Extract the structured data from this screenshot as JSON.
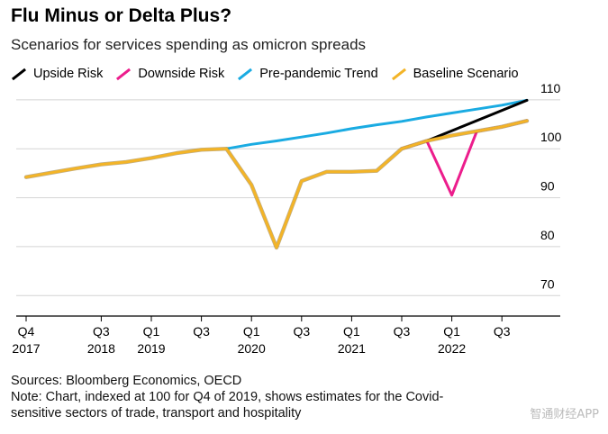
{
  "chart_data": {
    "type": "line",
    "title": "Flu Minus or Delta Plus?",
    "subtitle": "Scenarios for services spending as omicron spreads",
    "ylim": [
      66,
      112
    ],
    "yticks": [
      70,
      80,
      90,
      100,
      110
    ],
    "x_labels": [
      {
        "t": 0,
        "label": "Q4",
        "year": "2017"
      },
      {
        "t": 3,
        "label": "Q3",
        "year": "2018"
      },
      {
        "t": 5,
        "label": "Q1",
        "year": "2019"
      },
      {
        "t": 7,
        "label": "Q3",
        "year": ""
      },
      {
        "t": 9,
        "label": "Q1",
        "year": "2020"
      },
      {
        "t": 11,
        "label": "Q3",
        "year": ""
      },
      {
        "t": 13,
        "label": "Q1",
        "year": "2021"
      },
      {
        "t": 15,
        "label": "Q3",
        "year": ""
      },
      {
        "t": 17,
        "label": "Q1",
        "year": "2022"
      },
      {
        "t": 19,
        "label": "Q3",
        "year": ""
      }
    ],
    "series": [
      {
        "name": "Pre-pandemic Trend",
        "color": "#1aabe2",
        "x": [
          8,
          9,
          10,
          11,
          12,
          13,
          14,
          15,
          16,
          17,
          18,
          19,
          20
        ],
        "y": [
          100,
          100.9,
          101.6,
          102.4,
          103.2,
          104.1,
          104.9,
          105.6,
          106.5,
          107.3,
          108.1,
          108.9,
          109.9
        ]
      },
      {
        "name": "Upside Risk",
        "color": "#000000",
        "x": [
          15,
          16,
          20
        ],
        "y": [
          100,
          101.6,
          109.9
        ]
      },
      {
        "name": "Downside Risk",
        "color": "#ec1d8c",
        "x": [
          15,
          16,
          17,
          18,
          19,
          20
        ],
        "y": [
          100,
          101.6,
          90.5,
          103.6,
          104.5,
          105.7
        ]
      },
      {
        "name": "Baseline Scenario",
        "color": "#f3b427",
        "x": [
          0,
          1,
          2,
          3,
          4,
          5,
          6,
          7,
          8,
          9,
          10,
          11,
          12,
          13,
          14,
          15,
          16,
          17,
          18,
          19,
          20
        ],
        "y": [
          94.2,
          95.1,
          96.0,
          96.8,
          97.3,
          98.1,
          99.1,
          99.8,
          100,
          92.6,
          79.8,
          93.4,
          95.3,
          95.3,
          95.5,
          100,
          101.6,
          102.7,
          103.6,
          104.5,
          105.7
        ]
      }
    ]
  },
  "legend": [
    {
      "label": "Upside Risk",
      "color": "#000000"
    },
    {
      "label": "Downside Risk",
      "color": "#ec1d8c"
    },
    {
      "label": "Pre-pandemic Trend",
      "color": "#1aabe2"
    },
    {
      "label": "Baseline Scenario",
      "color": "#f3b427"
    }
  ],
  "footer": {
    "sources": "Sources: Bloomberg Economics, OECD",
    "note_line1": "Note: Chart, indexed at 100 for Q4 of 2019, shows estimates for the Covid-",
    "note_line2": "sensitive sectors of trade, transport and hospitality"
  },
  "watermark": "智通财经APP"
}
